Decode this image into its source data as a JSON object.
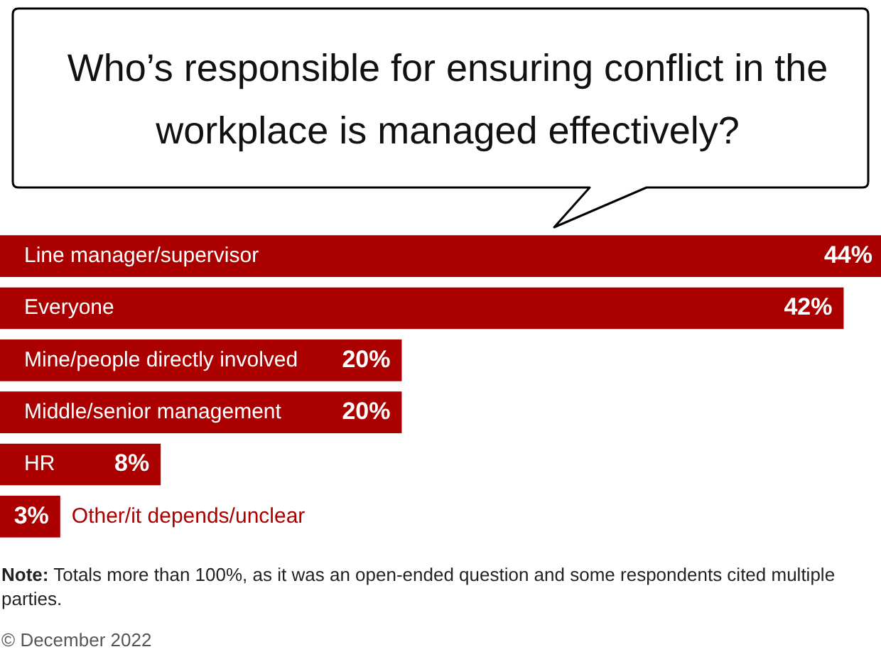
{
  "chart_data": {
    "type": "bar",
    "orientation": "horizontal",
    "title": "Who’s responsible for ensuring conflict in the workplace is managed effectively?",
    "categories": [
      "Line manager/supervisor",
      "Everyone",
      "Mine/people directly involved",
      "Middle/senior management",
      "HR",
      "Other/it depends/unclear"
    ],
    "values": [
      44,
      42,
      20,
      20,
      8,
      3
    ],
    "color": "#aa0000",
    "value_labels": [
      "44%",
      "42%",
      "20%",
      "20%",
      "8%",
      "3%"
    ],
    "annotations": [
      "Note: Totals more than 100%, as it was an open-ended question and some respondents cited multiple parties.",
      "© December 2022"
    ]
  }
}
